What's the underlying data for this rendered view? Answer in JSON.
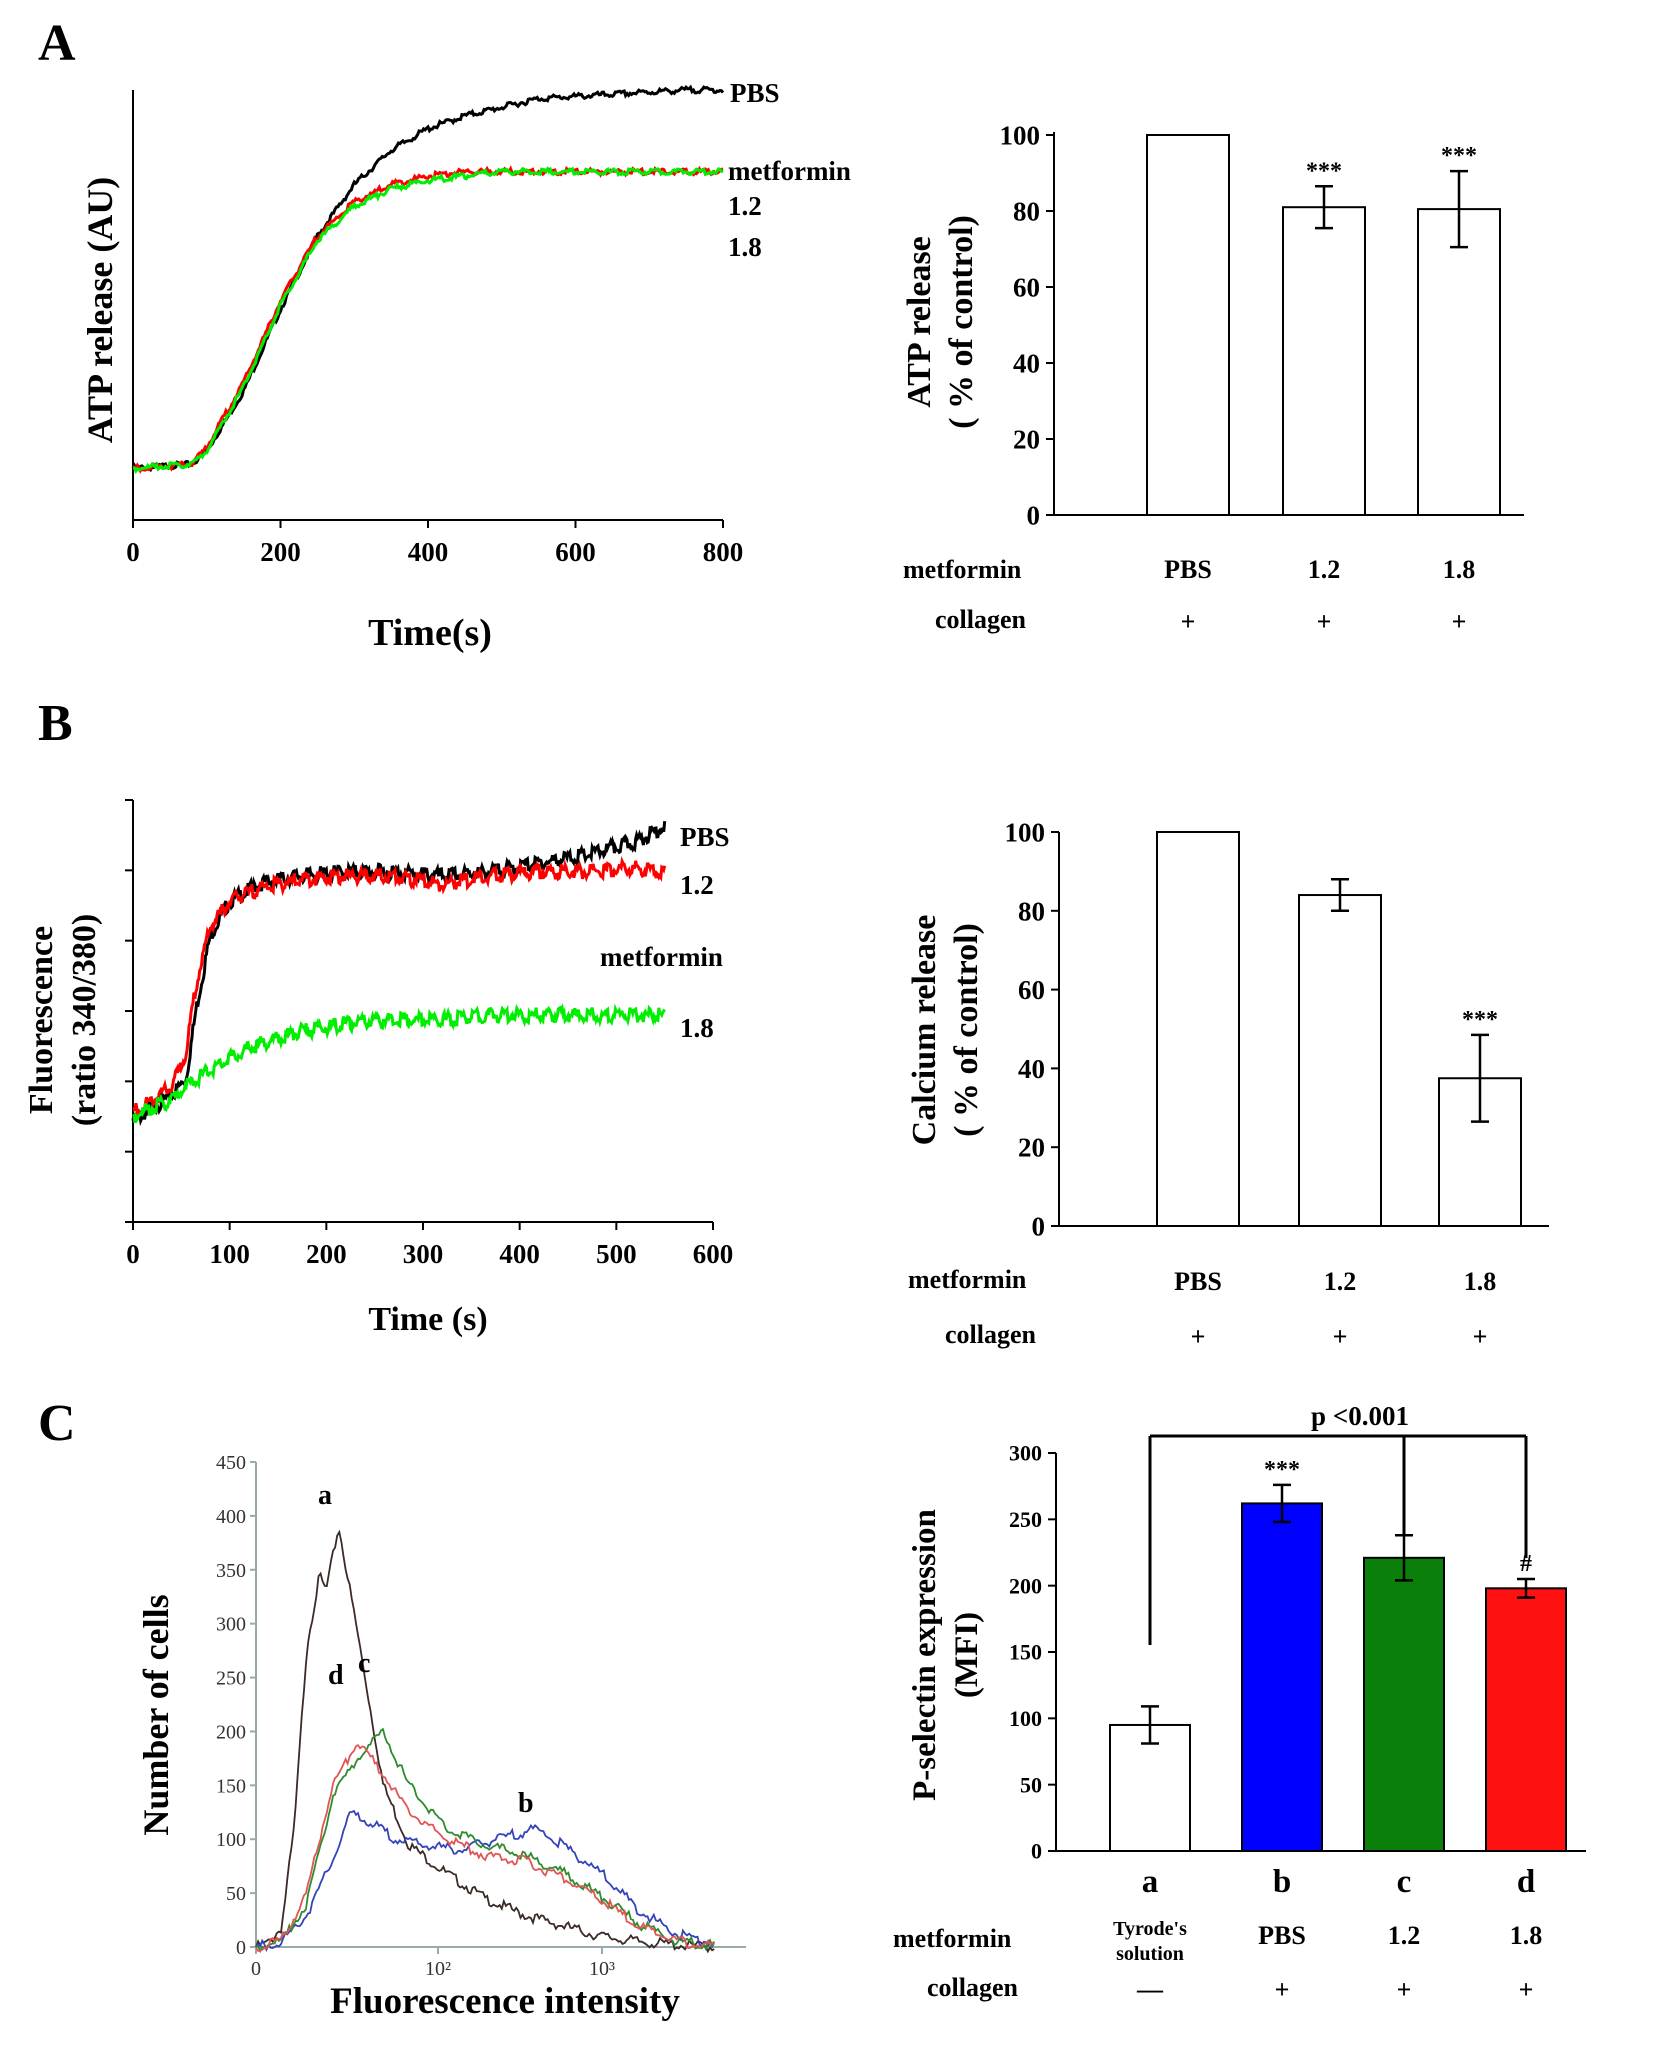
{
  "chart_data": [
    {
      "id": "A-left",
      "panel_label": "A",
      "type": "line",
      "xlabel": "Time(s)",
      "ylabel": "ATP release (AU)",
      "xlim": [
        0,
        800
      ],
      "ylim": [
        0,
        1
      ],
      "x_ticks": [
        "0",
        "200",
        "400",
        "600",
        "800"
      ],
      "series": [
        {
          "label": "PBS",
          "color": "#000000",
          "x": [
            0,
            80,
            100,
            150,
            200,
            250,
            300,
            350,
            400,
            450,
            500,
            550,
            600,
            650,
            700,
            750,
            800
          ],
          "y": [
            0.12,
            0.13,
            0.16,
            0.3,
            0.49,
            0.66,
            0.78,
            0.86,
            0.91,
            0.94,
            0.96,
            0.98,
            0.985,
            0.99,
            0.995,
            1.0,
            1.0
          ]
        },
        {
          "label": "1.2",
          "color": "#ff0000",
          "x": [
            0,
            80,
            100,
            150,
            200,
            250,
            300,
            350,
            400,
            450,
            500,
            550,
            600,
            650,
            700,
            750,
            800
          ],
          "y": [
            0.12,
            0.13,
            0.17,
            0.32,
            0.51,
            0.66,
            0.74,
            0.78,
            0.8,
            0.81,
            0.81,
            0.81,
            0.81,
            0.81,
            0.81,
            0.81,
            0.81
          ]
        },
        {
          "label": "1.8",
          "color": "#00ee00",
          "x": [
            0,
            80,
            100,
            150,
            200,
            250,
            300,
            350,
            400,
            450,
            500,
            550,
            600,
            650,
            700,
            750,
            800
          ],
          "y": [
            0.12,
            0.13,
            0.16,
            0.31,
            0.5,
            0.65,
            0.73,
            0.77,
            0.79,
            0.8,
            0.81,
            0.81,
            0.81,
            0.81,
            0.81,
            0.81,
            0.81
          ]
        }
      ],
      "annotations": [
        "PBS",
        "metformin",
        "1.2",
        "1.8"
      ]
    },
    {
      "id": "A-right",
      "type": "bar",
      "ylabel_line1": "ATP release",
      "ylabel_line2": "( % of control)",
      "ylim": [
        0,
        100
      ],
      "y_ticks": [
        "0",
        "20",
        "40",
        "60",
        "80",
        "100"
      ],
      "categories": [
        "PBS",
        "1.2",
        "1.8"
      ],
      "values": [
        100,
        81,
        80.5
      ],
      "errors": [
        0,
        5.5,
        10
      ],
      "significance": [
        "",
        "***",
        "***"
      ],
      "bar_colors": [
        "#ffffff",
        "#ffffff",
        "#ffffff"
      ],
      "row_labels": [
        "metformin",
        "collagen"
      ],
      "collagen_row": [
        "+",
        "+",
        "+"
      ]
    },
    {
      "id": "B-left",
      "panel_label": "B",
      "type": "line",
      "xlabel": "Time (s)",
      "ylabel_line1": "Fluorescence",
      "ylabel_line2": "(ratio 340/380)",
      "xlim": [
        0,
        600
      ],
      "ylim": [
        0,
        1
      ],
      "x_ticks": [
        "0",
        "100",
        "200",
        "300",
        "400",
        "500",
        "600"
      ],
      "series": [
        {
          "label": "PBS",
          "color": "#000000",
          "x": [
            0,
            20,
            40,
            55,
            65,
            80,
            100,
            130,
            170,
            220,
            270,
            320,
            370,
            420,
            470,
            520,
            550
          ],
          "y": [
            0.24,
            0.27,
            0.3,
            0.34,
            0.5,
            0.68,
            0.76,
            0.8,
            0.82,
            0.83,
            0.83,
            0.82,
            0.83,
            0.85,
            0.87,
            0.9,
            0.94
          ]
        },
        {
          "label": "1.2",
          "color": "#ff0000",
          "x": [
            0,
            20,
            40,
            55,
            65,
            80,
            100,
            130,
            170,
            220,
            270,
            320,
            370,
            420,
            470,
            520,
            550
          ],
          "y": [
            0.26,
            0.29,
            0.32,
            0.4,
            0.56,
            0.7,
            0.76,
            0.79,
            0.81,
            0.82,
            0.82,
            0.8,
            0.82,
            0.83,
            0.83,
            0.84,
            0.83
          ]
        },
        {
          "label": "1.8",
          "color": "#00ee00",
          "x": [
            0,
            20,
            40,
            60,
            80,
            100,
            130,
            170,
            220,
            270,
            320,
            370,
            420,
            470,
            520,
            550
          ],
          "y": [
            0.25,
            0.27,
            0.29,
            0.33,
            0.36,
            0.39,
            0.42,
            0.45,
            0.47,
            0.48,
            0.48,
            0.49,
            0.49,
            0.49,
            0.49,
            0.49
          ]
        }
      ],
      "annotations": [
        "PBS",
        "1.2",
        "metformin",
        "1.8"
      ]
    },
    {
      "id": "B-right",
      "type": "bar",
      "ylabel_line1": "Calcium release",
      "ylabel_line2": "( % of control)",
      "ylim": [
        0,
        100
      ],
      "y_ticks": [
        "0",
        "20",
        "40",
        "60",
        "80",
        "100"
      ],
      "categories": [
        "PBS",
        "1.2",
        "1.8"
      ],
      "values": [
        100,
        84,
        37.5
      ],
      "errors": [
        0,
        4,
        11
      ],
      "significance": [
        "",
        "",
        "***"
      ],
      "bar_colors": [
        "#ffffff",
        "#ffffff",
        "#ffffff"
      ],
      "row_labels": [
        "metformin",
        "collagen"
      ],
      "collagen_row": [
        "+",
        "+",
        "+"
      ]
    },
    {
      "id": "C-left",
      "panel_label": "C",
      "type": "line",
      "xlabel": "Fluorescence intensity",
      "ylabel": "Number of cells",
      "xlim": [
        0,
        3.85
      ],
      "ylim": [
        0,
        450
      ],
      "x_ticks": [
        "0",
        "10²",
        "10³"
      ],
      "y_ticks": [
        "0",
        "50",
        "100",
        "150",
        "200",
        "250",
        "300",
        "350",
        "400",
        "450"
      ],
      "series": [
        {
          "label": "a",
          "color": "#3b2a25",
          "x": [
            0,
            0.1,
            0.2,
            0.3,
            0.4,
            0.5,
            0.55,
            0.65,
            0.8,
            1.0,
            1.2,
            1.5,
            1.8,
            2.1,
            2.4,
            2.7,
            3.0,
            3.3,
            3.6
          ],
          "y": [
            0,
            4,
            18,
            110,
            280,
            345,
            330,
            390,
            290,
            150,
            95,
            68,
            45,
            30,
            20,
            10,
            5,
            2,
            0
          ]
        },
        {
          "label": "b",
          "color": "#3344bb",
          "x": [
            0,
            0.2,
            0.4,
            0.6,
            0.75,
            0.9,
            1.1,
            1.3,
            1.6,
            1.9,
            2.2,
            2.4,
            2.7,
            3.0,
            3.3,
            3.6
          ],
          "y": [
            0,
            5,
            30,
            80,
            125,
            115,
            100,
            95,
            90,
            100,
            110,
            95,
            70,
            35,
            12,
            3
          ]
        },
        {
          "label": "c",
          "color": "#2e8b2e",
          "x": [
            0,
            0.2,
            0.4,
            0.6,
            0.8,
            1.0,
            1.2,
            1.5,
            1.8,
            2.1,
            2.4,
            2.7,
            3.0,
            3.3,
            3.6
          ],
          "y": [
            0,
            6,
            40,
            140,
            175,
            200,
            150,
            110,
            95,
            85,
            70,
            48,
            22,
            6,
            1
          ]
        },
        {
          "label": "d",
          "color": "#e05555",
          "x": [
            0,
            0.2,
            0.4,
            0.6,
            0.8,
            1.0,
            1.2,
            1.5,
            1.8,
            2.1,
            2.4,
            2.7,
            3.0,
            3.3,
            3.6
          ],
          "y": [
            0,
            6,
            50,
            150,
            190,
            160,
            125,
            100,
            85,
            80,
            65,
            45,
            20,
            5,
            1
          ]
        }
      ]
    },
    {
      "id": "C-right",
      "type": "bar",
      "ylabel_line1": "P-selectin expression",
      "ylabel_line2": "(MFI)",
      "ylim": [
        0,
        300
      ],
      "y_ticks": [
        "0",
        "50",
        "100",
        "150",
        "200",
        "250",
        "300"
      ],
      "categories": [
        "a",
        "b",
        "c",
        "d"
      ],
      "values": [
        95,
        262,
        221,
        198
      ],
      "errors": [
        14,
        14,
        17,
        7
      ],
      "significance": [
        "",
        "***",
        "",
        "#"
      ],
      "bar_colors": [
        "#ffffff",
        "#0000ff",
        "#0a800a",
        "#ff1111"
      ],
      "bracket_label": "p <0.001",
      "row_labels": [
        "metformin",
        "collagen"
      ],
      "metformin_row": [
        "Tyrode's",
        "PBS",
        "1.2",
        "1.8"
      ],
      "metformin_row_extra": "solution",
      "collagen_row": [
        "—",
        "+",
        "+",
        "+"
      ]
    }
  ]
}
